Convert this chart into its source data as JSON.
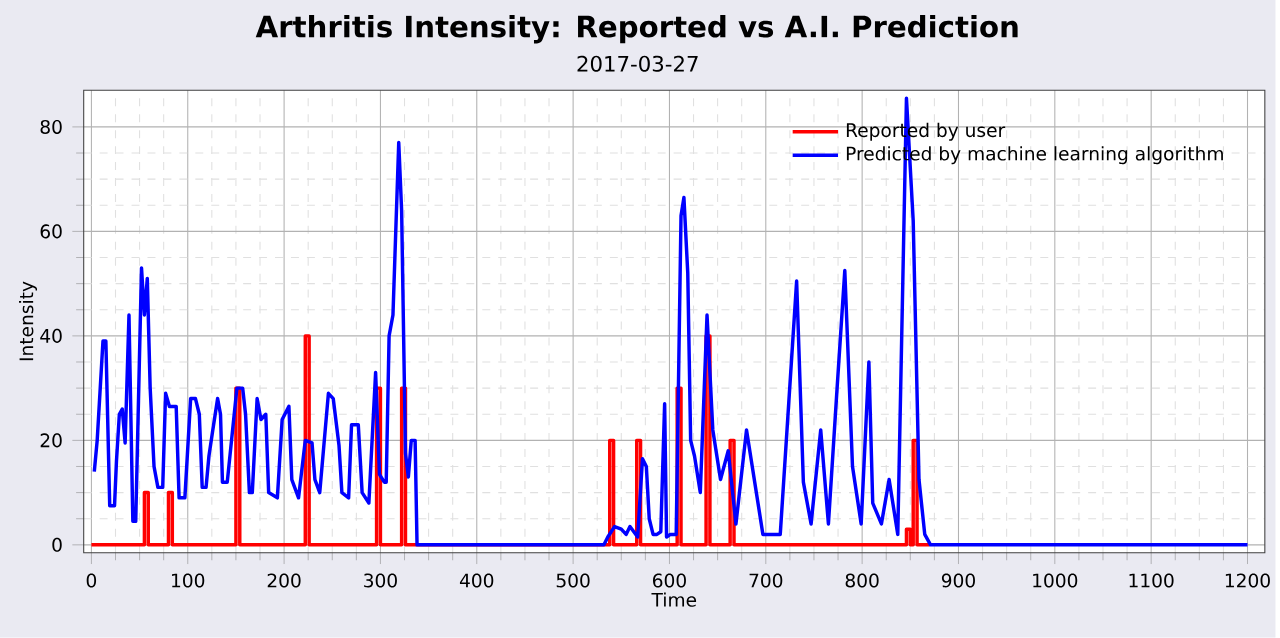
{
  "chart_data": {
    "type": "line",
    "title": "Arthritis Intensity: Reported vs A.I. Prediction",
    "subtitle": "2017-03-27",
    "xlabel": "Time",
    "ylabel": "Intensity",
    "xlim": [
      -8,
      1218
    ],
    "ylim": [
      -1.5,
      87
    ],
    "xticks": [
      0,
      100,
      200,
      300,
      400,
      500,
      600,
      700,
      800,
      900,
      1000,
      1100,
      1200
    ],
    "yticks": [
      0,
      20,
      40,
      60,
      80
    ],
    "grid": true,
    "legend": "top right",
    "marker": "none",
    "line_style": "solid",
    "series": [
      {
        "name": "Reported by user",
        "color": "#ff0000",
        "x": [
          0,
          55,
          55,
          59,
          59,
          80,
          80,
          84,
          84,
          150,
          150,
          154,
          154,
          222,
          222,
          226,
          226,
          296,
          296,
          300,
          300,
          322,
          322,
          326,
          326,
          538,
          538,
          542,
          542,
          566,
          566,
          570,
          570,
          608,
          608,
          612,
          612,
          638,
          638,
          642,
          642,
          663,
          663,
          667,
          667,
          846,
          846,
          850,
          850,
          853,
          853,
          857,
          857,
          870
        ],
        "values": [
          0,
          0,
          10,
          10,
          0,
          0,
          10,
          10,
          0,
          0,
          30,
          30,
          0,
          0,
          40,
          40,
          0,
          0,
          30,
          30,
          0,
          0,
          30,
          30,
          0,
          0,
          20,
          20,
          0,
          0,
          20,
          20,
          0,
          0,
          30,
          30,
          0,
          0,
          40,
          40,
          0,
          0,
          20,
          20,
          0,
          0,
          3,
          3,
          0,
          0,
          20,
          20,
          0,
          0
        ]
      },
      {
        "name": "Predicted by machine learning algorithm",
        "color": "#0000ff",
        "x": [
          3,
          6,
          12,
          15,
          19,
          24,
          26,
          29,
          32,
          35,
          39,
          43,
          46,
          52,
          55,
          58,
          61,
          65,
          69,
          74,
          77,
          81,
          88,
          91,
          97,
          103,
          108,
          112,
          115,
          119,
          122,
          126,
          131,
          134,
          136,
          141,
          151,
          157,
          160,
          164,
          167,
          172,
          176,
          181,
          184,
          193,
          198,
          205,
          208,
          215,
          222,
          229,
          232,
          237,
          246,
          251,
          257,
          260,
          267,
          270,
          277,
          281,
          288,
          295,
          299,
          304,
          306,
          309,
          313,
          319,
          322,
          326,
          329,
          332,
          336,
          338,
          532,
          536,
          543,
          550,
          555,
          559,
          563,
          567,
          572,
          576,
          579,
          583,
          587,
          591,
          595,
          597,
          601,
          607,
          612,
          615,
          619,
          622,
          626,
          632,
          639,
          645,
          653,
          661,
          669,
          680,
          697,
          715,
          732,
          739,
          747,
          757,
          765,
          774,
          782,
          790,
          799,
          807,
          811,
          820,
          828,
          837,
          846,
          853,
          859,
          865,
          871,
          1200
        ],
        "values": [
          14,
          20,
          39,
          39,
          7.5,
          7.5,
          16,
          25,
          26,
          19.5,
          44,
          4.5,
          4.5,
          53,
          44,
          51,
          30,
          15,
          11,
          11,
          29,
          26.5,
          26.5,
          9,
          9,
          28,
          28,
          25,
          11,
          11,
          17,
          22,
          28,
          25,
          12,
          12,
          30,
          30,
          25,
          10,
          10,
          28,
          24,
          25,
          10,
          9,
          24,
          26.5,
          12.5,
          9,
          20,
          19.5,
          12.5,
          10,
          29,
          28,
          19,
          10,
          9,
          23,
          23,
          10,
          8,
          33,
          13.5,
          12,
          12,
          40,
          44,
          77,
          64,
          17.5,
          13,
          20,
          20,
          0,
          0,
          1.5,
          3.5,
          3,
          2,
          3.5,
          2.5,
          1.5,
          16.5,
          15,
          5,
          2,
          2,
          2.5,
          27,
          1.5,
          2,
          2,
          63,
          66.5,
          52,
          20,
          17,
          10,
          44,
          22,
          12.5,
          18,
          4,
          22,
          2,
          2,
          50.5,
          12,
          4,
          22,
          4,
          30,
          52.5,
          15,
          4,
          35,
          8,
          4,
          12.5,
          2,
          85.5,
          62,
          12.5,
          2,
          0,
          0
        ]
      }
    ]
  }
}
